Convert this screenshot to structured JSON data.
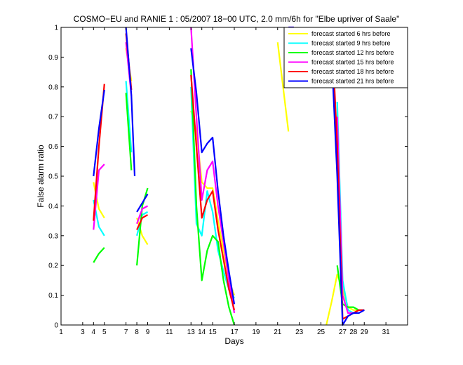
{
  "chart_data": {
    "type": "line",
    "title": "COSMO−EU and RANIE 1 : 05/2007 18−00 UTC, 2.0 mm/6h for \"Elbe upriver of Saale\"",
    "xlabel": "Days",
    "ylabel": "False alarm ratio",
    "xlim": [
      1,
      33
    ],
    "ylim": [
      0,
      1
    ],
    "x_ticks": [
      1,
      3,
      4,
      5,
      7,
      8,
      9,
      11,
      13,
      14,
      15,
      17,
      19,
      21,
      23,
      25,
      27,
      28,
      29,
      31
    ],
    "y_ticks": [
      0,
      0.1,
      0.2,
      0.3,
      0.4,
      0.5,
      0.6,
      0.7,
      0.8,
      0.9,
      1
    ],
    "grid": false,
    "legend_position": "top-right",
    "series": [
      {
        "name": "forecast started 6 hrs before",
        "color": "#ffff00",
        "segments": [
          [
            [
              4.0,
              0.48
            ],
            [
              4.5,
              0.39
            ],
            [
              5.0,
              0.36
            ]
          ],
          [
            [
              7.0,
              0.93
            ],
            [
              7.5,
              0.82
            ]
          ],
          [
            [
              8.0,
              0.36
            ],
            [
              8.5,
              0.3
            ],
            [
              9.0,
              0.27
            ]
          ],
          [
            [
              13.0,
              0.72
            ],
            [
              13.5,
              0.65
            ],
            [
              14.0,
              0.48
            ],
            [
              14.5,
              0.46
            ],
            [
              15.0,
              0.46
            ],
            [
              15.5,
              0.35
            ],
            [
              16.0,
              0.25
            ],
            [
              16.5,
              0.15
            ],
            [
              17.0,
              0.1
            ]
          ],
          [
            [
              21.0,
              0.95
            ],
            [
              21.5,
              0.8
            ],
            [
              22.0,
              0.65
            ]
          ],
          [
            [
              25.5,
              0.0
            ],
            [
              26.0,
              0.08
            ],
            [
              26.5,
              0.17
            ],
            [
              27.0,
              0.12
            ],
            [
              27.5,
              0.06
            ],
            [
              28.0,
              0.05
            ],
            [
              28.5,
              0.05
            ],
            [
              29.0,
              0.05
            ]
          ],
          [
            [
              31.0,
              0.93
            ],
            [
              31.05,
              0.94
            ]
          ]
        ]
      },
      {
        "name": "forecast started 9 hrs before",
        "color": "#00ffff",
        "segments": [
          [
            [
              4.0,
              0.42
            ],
            [
              4.5,
              0.33
            ],
            [
              5.0,
              0.3
            ]
          ],
          [
            [
              7.0,
              0.82
            ],
            [
              7.5,
              0.58
            ]
          ],
          [
            [
              8.0,
              0.3
            ],
            [
              8.5,
              0.37
            ],
            [
              9.0,
              0.38
            ]
          ],
          [
            [
              13.0,
              0.8
            ],
            [
              13.5,
              0.34
            ],
            [
              14.0,
              0.3
            ],
            [
              14.5,
              0.45
            ],
            [
              15.0,
              0.38
            ],
            [
              15.5,
              0.25
            ],
            [
              16.0,
              0.18
            ],
            [
              16.5,
              0.12
            ],
            [
              17.0,
              0.09
            ]
          ],
          [
            [
              26.5,
              0.75
            ],
            [
              27.0,
              0.15
            ],
            [
              27.5,
              0.05
            ],
            [
              28.0,
              0.04
            ],
            [
              28.5,
              0.05
            ],
            [
              29.0,
              0.05
            ]
          ],
          [
            [
              31.0,
              0.92
            ],
            [
              31.05,
              0.93
            ]
          ]
        ]
      },
      {
        "name": "forecast started 12 hrs before",
        "color": "#00ff00",
        "segments": [
          [
            [
              4.0,
              0.21
            ],
            [
              4.5,
              0.24
            ],
            [
              5.0,
              0.26
            ]
          ],
          [
            [
              7.0,
              0.78
            ],
            [
              7.5,
              0.52
            ]
          ],
          [
            [
              8.0,
              0.2
            ],
            [
              8.5,
              0.4
            ],
            [
              9.0,
              0.46
            ]
          ],
          [
            [
              13.0,
              0.86
            ],
            [
              13.5,
              0.4
            ],
            [
              14.0,
              0.15
            ],
            [
              14.5,
              0.25
            ],
            [
              15.0,
              0.3
            ],
            [
              15.5,
              0.28
            ],
            [
              16.0,
              0.15
            ],
            [
              16.5,
              0.06
            ],
            [
              17.0,
              0.0
            ]
          ],
          [
            [
              26.5,
              0.2
            ],
            [
              27.0,
              0.07
            ],
            [
              27.5,
              0.06
            ],
            [
              28.0,
              0.06
            ],
            [
              28.5,
              0.05
            ],
            [
              29.0,
              0.05
            ]
          ]
        ]
      },
      {
        "name": "forecast started 15 hrs before",
        "color": "#ff00ff",
        "segments": [
          [
            [
              4.0,
              0.32
            ],
            [
              4.5,
              0.52
            ],
            [
              5.0,
              0.54
            ]
          ],
          [
            [
              7.0,
              0.95
            ],
            [
              7.5,
              0.77
            ]
          ],
          [
            [
              8.0,
              0.34
            ],
            [
              8.5,
              0.39
            ],
            [
              9.0,
              0.4
            ]
          ],
          [
            [
              13.0,
              1.0
            ],
            [
              13.5,
              0.7
            ],
            [
              14.0,
              0.42
            ],
            [
              14.5,
              0.52
            ],
            [
              15.0,
              0.55
            ],
            [
              15.5,
              0.4
            ],
            [
              16.0,
              0.28
            ],
            [
              16.5,
              0.15
            ],
            [
              17.0,
              0.04
            ]
          ],
          [
            [
              22.0,
              1.0
            ],
            [
              22.5,
              1.0
            ]
          ],
          [
            [
              26.5,
              0.7
            ],
            [
              27.0,
              0.1
            ],
            [
              27.5,
              0.04
            ],
            [
              28.0,
              0.04
            ],
            [
              28.5,
              0.05
            ],
            [
              29.0,
              0.05
            ]
          ]
        ]
      },
      {
        "name": "forecast started 18 hrs before",
        "color": "#ff0000",
        "segments": [
          [
            [
              4.0,
              0.35
            ],
            [
              4.5,
              0.6
            ],
            [
              5.0,
              0.81
            ]
          ],
          [
            [
              7.0,
              0.98
            ],
            [
              7.5,
              0.79
            ]
          ],
          [
            [
              8.0,
              0.32
            ],
            [
              8.5,
              0.36
            ],
            [
              9.0,
              0.37
            ]
          ],
          [
            [
              13.0,
              0.84
            ],
            [
              13.5,
              0.6
            ],
            [
              14.0,
              0.36
            ],
            [
              14.5,
              0.42
            ],
            [
              15.0,
              0.45
            ],
            [
              15.5,
              0.32
            ],
            [
              16.0,
              0.22
            ],
            [
              16.5,
              0.12
            ],
            [
              17.0,
              0.05
            ]
          ],
          [
            [
              22.0,
              0.91
            ],
            [
              22.05,
              0.91
            ]
          ],
          [
            [
              26.0,
              1.0
            ],
            [
              26.5,
              0.6
            ],
            [
              27.0,
              0.02
            ],
            [
              27.5,
              0.03
            ],
            [
              28.0,
              0.04
            ],
            [
              28.5,
              0.05
            ],
            [
              29.0,
              0.05
            ]
          ]
        ]
      },
      {
        "name": "forecast started 21 hrs before",
        "color": "#0000ff",
        "segments": [
          [
            [
              4.0,
              0.5
            ],
            [
              4.5,
              0.66
            ],
            [
              5.0,
              0.79
            ]
          ],
          [
            [
              7.0,
              1.0
            ],
            [
              7.5,
              0.77
            ],
            [
              7.8,
              0.5
            ]
          ],
          [
            [
              8.0,
              0.38
            ],
            [
              8.5,
              0.41
            ],
            [
              9.0,
              0.44
            ]
          ],
          [
            [
              13.0,
              0.93
            ],
            [
              13.5,
              0.78
            ],
            [
              14.0,
              0.58
            ],
            [
              14.5,
              0.61
            ],
            [
              15.0,
              0.63
            ],
            [
              15.5,
              0.45
            ],
            [
              16.0,
              0.3
            ],
            [
              16.5,
              0.18
            ],
            [
              17.0,
              0.07
            ]
          ],
          [
            [
              22.0,
              1.0
            ],
            [
              22.5,
              1.0
            ]
          ],
          [
            [
              26.0,
              0.9
            ],
            [
              26.5,
              0.5
            ],
            [
              27.0,
              0.0
            ],
            [
              27.5,
              0.03
            ],
            [
              28.0,
              0.04
            ],
            [
              28.5,
              0.04
            ],
            [
              29.0,
              0.05
            ]
          ]
        ]
      }
    ]
  }
}
